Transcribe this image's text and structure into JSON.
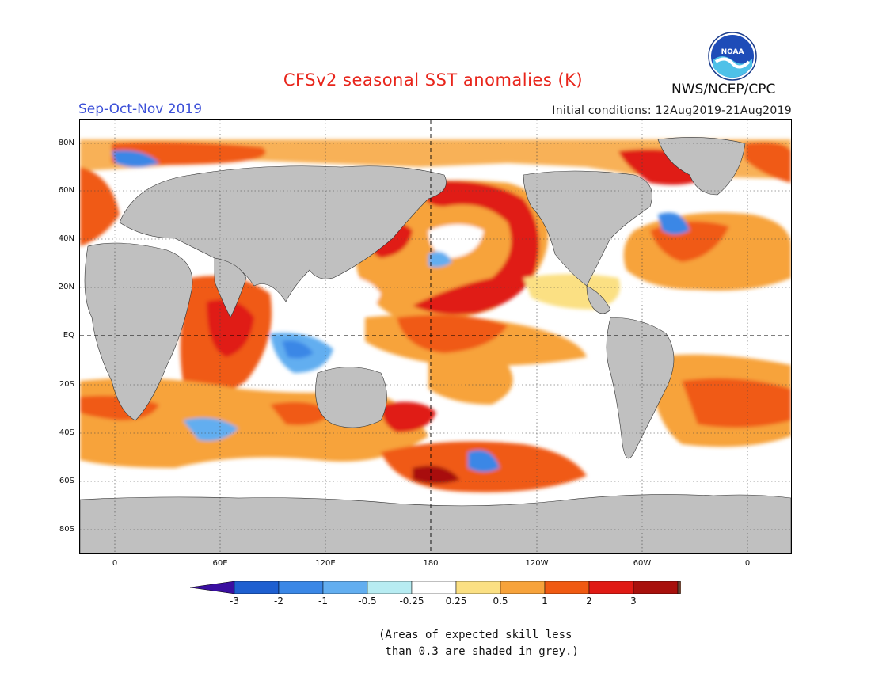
{
  "header": {
    "title": "CFSv2 seasonal SST anomalies (K)",
    "season": "Sep-Oct-Nov 2019",
    "initial_conditions": "Initial conditions: 12Aug2019-21Aug2019",
    "agency": "NWS/NCEP/CPC",
    "logo_text": "NOAA"
  },
  "map": {
    "lat_labels": [
      "80N",
      "60N",
      "40N",
      "20N",
      "EQ",
      "20S",
      "40S",
      "60S",
      "80S"
    ],
    "lon_labels": [
      "0",
      "60E",
      "120E",
      "180",
      "120W",
      "60W",
      "0"
    ],
    "land_color": "#c0c0c0",
    "grid_lines": "dotted at 20° lat / 60° lon; dashed equator and 180"
  },
  "colorbar": {
    "tick_labels": [
      "-3",
      "-2",
      "-1",
      "-0.5",
      "-0.25",
      "0.25",
      "0.5",
      "1",
      "2",
      "3"
    ],
    "colors": [
      "#3a0fa0",
      "#1e5fd0",
      "#3a87e6",
      "#62aef0",
      "#b7ecf2",
      "#ffffff",
      "#fbe083",
      "#f7a33b",
      "#f05a12",
      "#e01a14",
      "#a8100c",
      "#6b4636"
    ]
  },
  "note": "(Areas of expected skill less\n than 0.3 are shaded in grey.)"
}
